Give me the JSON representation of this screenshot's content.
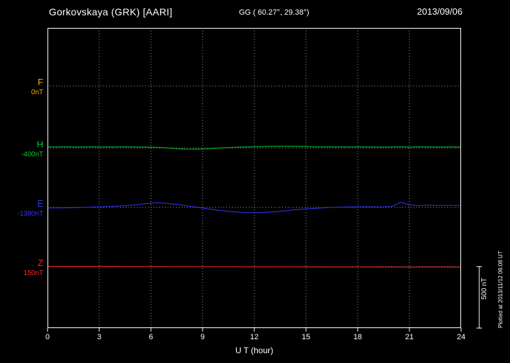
{
  "header": {
    "station": "Gorkovskaya (GRK)  [AARI]",
    "coords": "GG ( 60.27°,  29.38°)",
    "date": "2013/09/06"
  },
  "x_axis": {
    "label": "U T (hour)",
    "tick_labels": [
      "0",
      "3",
      "6",
      "9",
      "12",
      "15",
      "18",
      "21",
      "24"
    ]
  },
  "scale_bar_label": "500 nT",
  "plot_note": "Plotted at 2013/11/12 06:08 UT",
  "colors": {
    "background": "#000000",
    "frame": "#ffffff",
    "grid": "#999999",
    "text": "#ffffff"
  },
  "chart_data": {
    "type": "line",
    "title": "Magnetogram Gorkovskaya (GRK) [AARI] 2013/09/06",
    "xlabel": "U T (hour)",
    "x_range": [
      0,
      24
    ],
    "x_step_hours": 0.5,
    "x_tick_interval_hours": 3,
    "grid": "dotted",
    "legend_position": "left-outside",
    "scale_bar_nT": 500,
    "series": [
      {
        "name": "F",
        "label": "F",
        "baseline_label": "0nT",
        "baseline_value": 0,
        "color": "#ffaa00",
        "baseline_frac": 0.193,
        "values": null
      },
      {
        "name": "H",
        "label": "H",
        "baseline_label": "-400nT",
        "baseline_value": -400,
        "color": "#00cc33",
        "baseline_frac": 0.4,
        "values": [
          -392,
          -392,
          -391,
          -392,
          -392,
          -391,
          -392,
          -392,
          -392,
          -391,
          -392,
          -393,
          -394,
          -396,
          -400,
          -405,
          -409,
          -410,
          -408,
          -404,
          -400,
          -397,
          -394,
          -392,
          -390,
          -388,
          -386,
          -385,
          -385,
          -386,
          -388,
          -390,
          -391,
          -391,
          -392,
          -392,
          -391,
          -392,
          -392,
          -393,
          -392,
          -390,
          -394,
          -391,
          -392,
          -392,
          -392,
          -392,
          -392
        ]
      },
      {
        "name": "E",
        "label": "E",
        "baseline_label": "-1380nT",
        "baseline_value": -1380,
        "color": "#3333ff",
        "baseline_frac": 0.598,
        "values": [
          -1385,
          -1384,
          -1383,
          -1382,
          -1380,
          -1378,
          -1375,
          -1372,
          -1370,
          -1366,
          -1360,
          -1352,
          -1345,
          -1342,
          -1348,
          -1356,
          -1365,
          -1375,
          -1385,
          -1395,
          -1405,
          -1412,
          -1418,
          -1422,
          -1424,
          -1422,
          -1418,
          -1412,
          -1405,
          -1398,
          -1392,
          -1387,
          -1383,
          -1380,
          -1378,
          -1376,
          -1375,
          -1374,
          -1376,
          -1375,
          -1372,
          -1338,
          -1360,
          -1365,
          -1362,
          -1364,
          -1363,
          -1364,
          -1363
        ]
      },
      {
        "name": "Z",
        "label": "Z",
        "baseline_label": "150nT",
        "baseline_value": 150,
        "color": "#ff2222",
        "baseline_frac": 0.795,
        "values": [
          152,
          152,
          152,
          152,
          152,
          152,
          152,
          152,
          152,
          151,
          151,
          151,
          151,
          151,
          150,
          150,
          150,
          150,
          149,
          149,
          149,
          149,
          149,
          148,
          148,
          148,
          148,
          148,
          148,
          148,
          147,
          147,
          147,
          147,
          147,
          147,
          147,
          147,
          147,
          146,
          146,
          146,
          144,
          146,
          146,
          146,
          146,
          146,
          146
        ]
      }
    ]
  }
}
